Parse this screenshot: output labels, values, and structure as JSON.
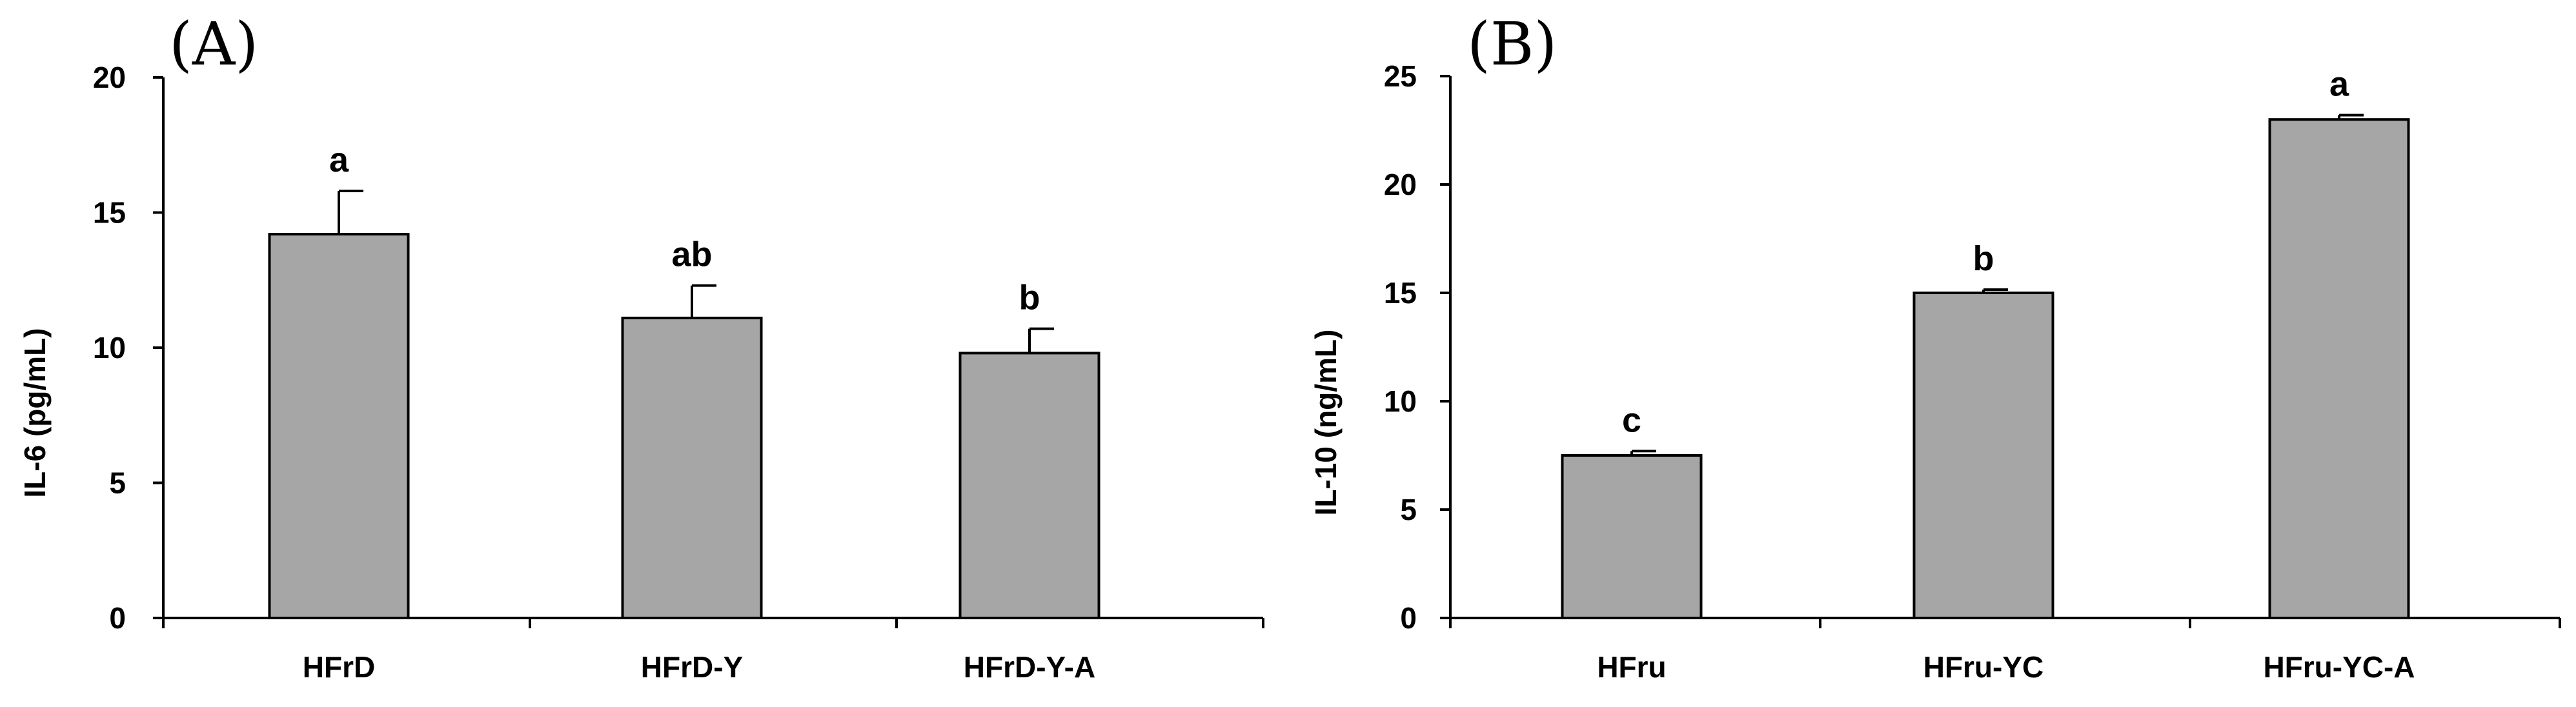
{
  "chart_data": [
    {
      "type": "bar",
      "panel_label": "(A)",
      "categories": [
        "HFrD",
        "HFrD-Y",
        "HFrD-Y-A"
      ],
      "values": [
        14.2,
        11.1,
        9.8
      ],
      "errors": [
        1.6,
        1.2,
        0.9
      ],
      "significance": [
        "a",
        "ab",
        "b"
      ],
      "title": "",
      "xlabel": "",
      "ylabel": "IL-6 (pg/mL)",
      "ylim": [
        0,
        20
      ],
      "yticks": [
        "0",
        "5",
        "10",
        "15",
        "20"
      ],
      "grid": false,
      "bar_color": "#a6a6a6"
    },
    {
      "type": "bar",
      "panel_label": "(B)",
      "categories": [
        "HFru",
        "HFru-YC",
        "HFru-YC-A"
      ],
      "values": [
        7.5,
        15.0,
        23.0
      ],
      "errors": [
        0.2,
        0.15,
        0.2
      ],
      "significance": [
        "c",
        "b",
        "a"
      ],
      "title": "",
      "xlabel": "",
      "ylabel": "IL-10 (ng/mL)",
      "ylim": [
        0,
        25
      ],
      "yticks": [
        "0",
        "5",
        "10",
        "15",
        "20",
        "25"
      ],
      "grid": false,
      "bar_color": "#a6a6a6"
    }
  ]
}
